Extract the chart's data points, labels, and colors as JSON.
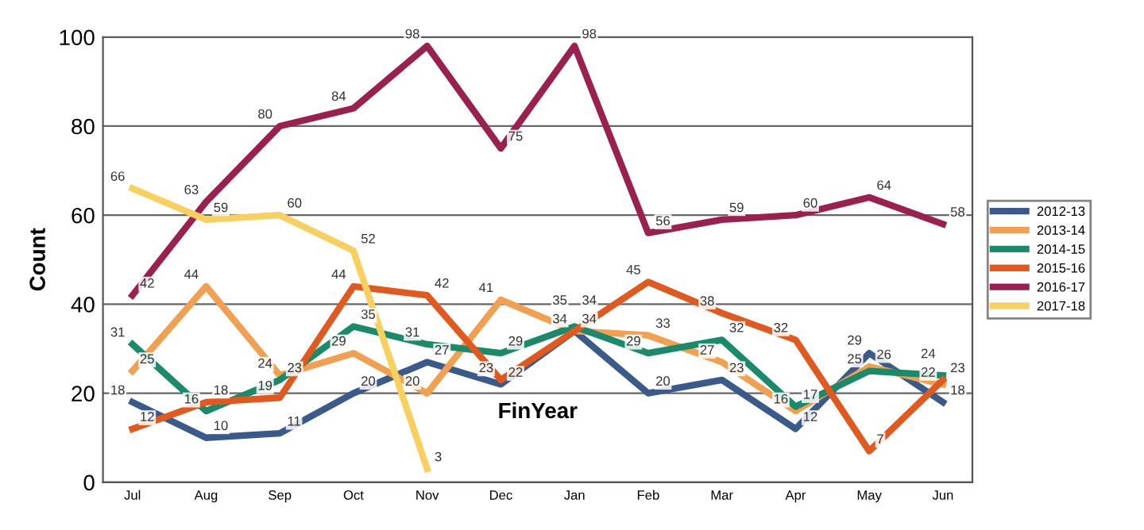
{
  "chart_data": {
    "type": "line",
    "ylabel": "Count",
    "xlabel": "FinYear",
    "categories": [
      "Jul",
      "Aug",
      "Sep",
      "Oct",
      "Nov",
      "Dec",
      "Jan",
      "Feb",
      "Mar",
      "Apr",
      "May",
      "Jun"
    ],
    "series": [
      {
        "name": "2012-13",
        "color": "#3a5a8c",
        "values": [
          18,
          10,
          11,
          20,
          27,
          22,
          34,
          20,
          23,
          12,
          29,
          18
        ]
      },
      {
        "name": "2013-14",
        "color": "#f0a050",
        "values": [
          25,
          44,
          24,
          29,
          20,
          41,
          34,
          33,
          27,
          16,
          26,
          22
        ]
      },
      {
        "name": "2014-15",
        "color": "#1a8a6a",
        "values": [
          31,
          16,
          23,
          35,
          31,
          29,
          35,
          29,
          32,
          17,
          25,
          24
        ]
      },
      {
        "name": "2015-16",
        "color": "#e05a20",
        "values": [
          12,
          18,
          19,
          44,
          42,
          23,
          34,
          45,
          38,
          32,
          7,
          23
        ]
      },
      {
        "name": "2016-17",
        "color": "#9a2050",
        "values": [
          42,
          63,
          80,
          84,
          98,
          75,
          98,
          56,
          59,
          60,
          64,
          58
        ]
      },
      {
        "name": "2017-18",
        "color": "#f8d060",
        "values": [
          66,
          59,
          60,
          52,
          3,
          null,
          null,
          null,
          null,
          null,
          null,
          null
        ]
      }
    ],
    "ylim": [
      0,
      100
    ],
    "yticks": [
      0,
      20,
      40,
      60,
      80,
      100
    ],
    "grid": "y",
    "legend": "right",
    "data_labels": true,
    "marker": "none",
    "line_style": "solid"
  }
}
